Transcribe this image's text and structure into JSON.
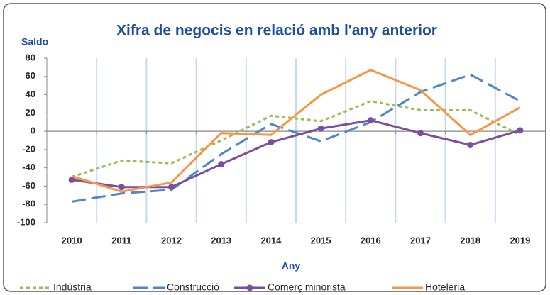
{
  "chart_data": {
    "type": "line",
    "title": "Xifra de negocis en relació amb l'any anterior",
    "y_label": "Saldo",
    "x_label": "Any",
    "categories": [
      "2010",
      "2011",
      "2012",
      "2013",
      "2014",
      "2015",
      "2016",
      "2017",
      "2018",
      "2019"
    ],
    "ylim": [
      -100,
      80
    ],
    "yticks": [
      -100,
      -80,
      -60,
      -40,
      -20,
      0,
      20,
      40,
      60,
      80
    ],
    "series": [
      {
        "name": "Indústria",
        "color": "#9bbb59",
        "dash": "dotted",
        "values": [
          -50,
          -32,
          -35,
          -10,
          17,
          11,
          33,
          23,
          23,
          -4
        ]
      },
      {
        "name": "Construcció",
        "color": "#4f86c6",
        "dash": "long",
        "values": [
          -77,
          -68,
          -64,
          -25,
          8,
          -11,
          10,
          43,
          62,
          33
        ]
      },
      {
        "name": "Comerç minorista",
        "color": "#7b4f9e",
        "dash": "solid",
        "marker": true,
        "values": [
          -53,
          -61,
          -61,
          -36,
          -12,
          3,
          12,
          -2,
          -15,
          1
        ]
      },
      {
        "name": "Hoteleria",
        "color": "#f79646",
        "dash": "solid",
        "values": [
          -49,
          -66,
          -56,
          -2,
          -4,
          40,
          67,
          45,
          -4,
          26
        ]
      }
    ]
  }
}
